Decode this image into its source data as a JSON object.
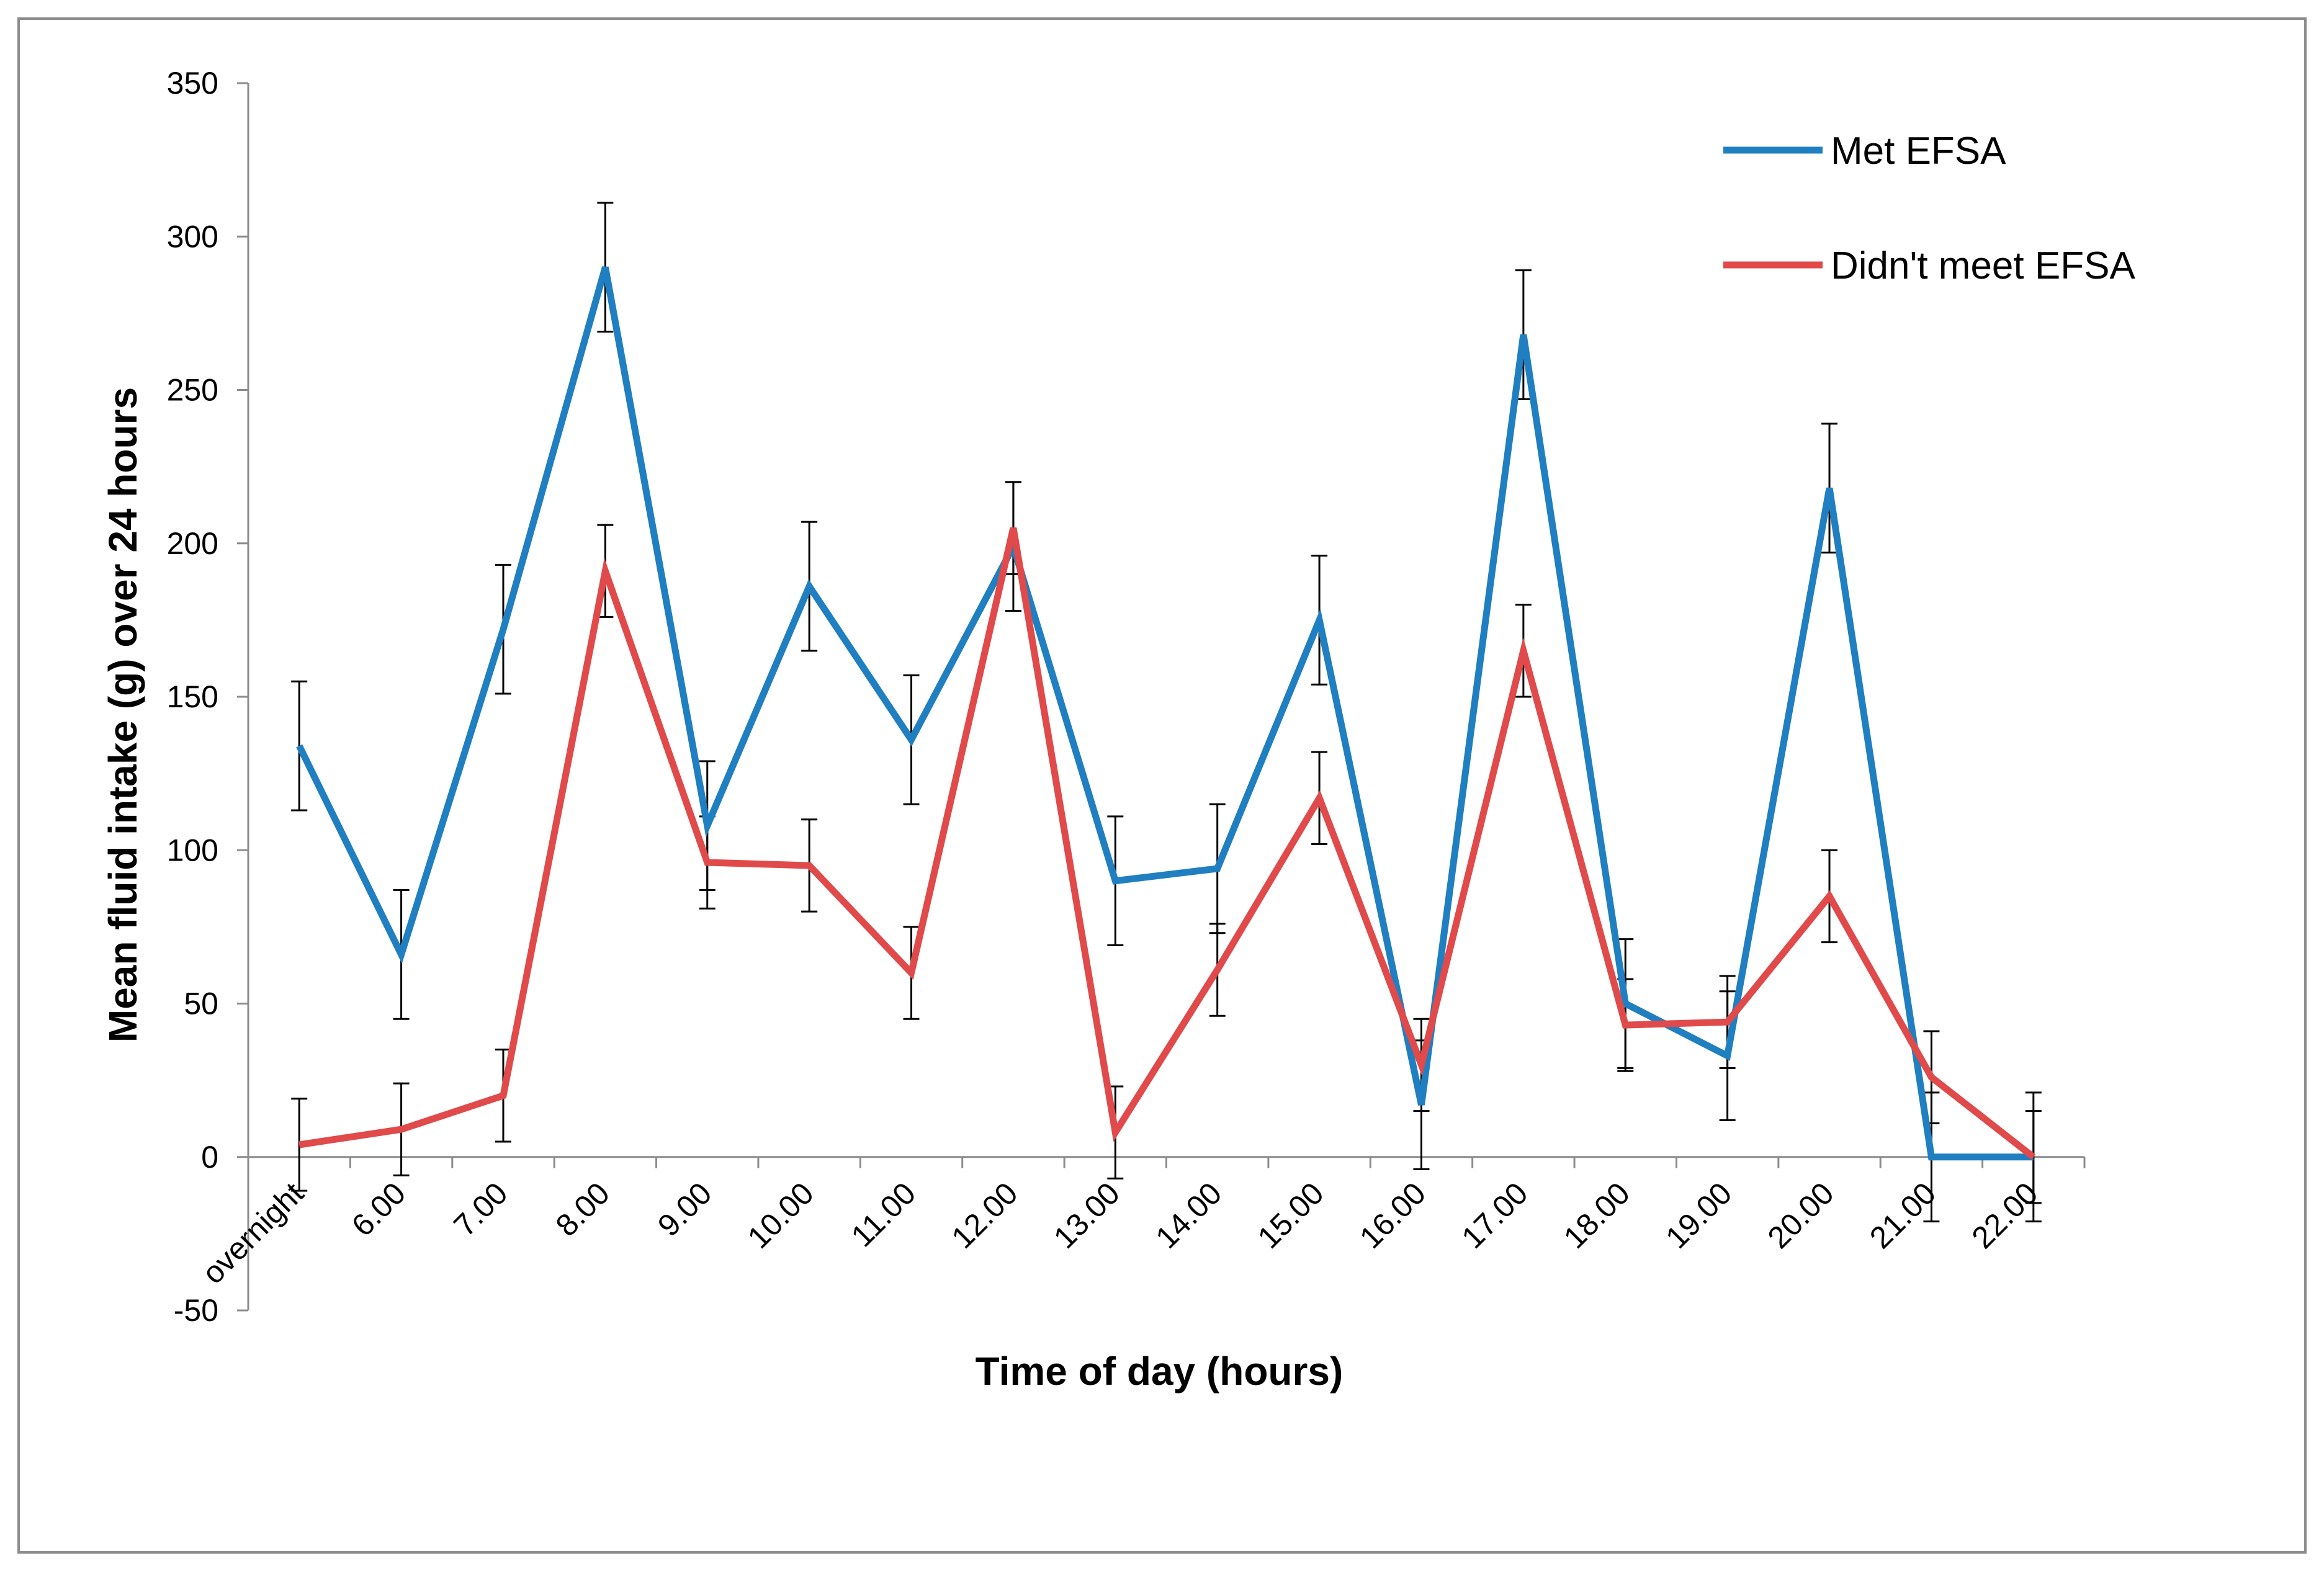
{
  "chart_data": {
    "type": "line",
    "title": "",
    "xlabel": "Time of day (hours)",
    "ylabel": "Mean fluid intake (g) over 24 hours",
    "ylim": [
      -50,
      350
    ],
    "yticks": [
      -50,
      0,
      50,
      100,
      150,
      200,
      250,
      300,
      350
    ],
    "grid": false,
    "legend_position": "top-right",
    "categories": [
      "overnight",
      "6.00",
      "7.00",
      "8.00",
      "9.00",
      "10.00",
      "11.00",
      "12.00",
      "13.00",
      "14.00",
      "15.00",
      "16.00",
      "17.00",
      "18.00",
      "19.00",
      "20.00",
      "21.00",
      "22.00"
    ],
    "series": [
      {
        "name": "Met EFSA",
        "color": "#1f7fc1",
        "values": [
          134,
          66,
          172,
          290,
          108,
          186,
          136,
          199,
          90,
          94,
          175,
          17,
          268,
          50,
          33,
          218,
          0,
          0
        ],
        "error": [
          21,
          21,
          21,
          21,
          21,
          21,
          21,
          21,
          21,
          21,
          21,
          21,
          21,
          21,
          21,
          21,
          21,
          21
        ]
      },
      {
        "name": "Didn't meet EFSA",
        "color": "#e04a4a",
        "values": [
          4,
          9,
          20,
          191,
          96,
          95,
          60,
          205,
          8,
          61,
          117,
          30,
          165,
          43,
          44,
          85,
          26,
          0
        ],
        "error": [
          15,
          15,
          15,
          15,
          15,
          15,
          15,
          15,
          15,
          15,
          15,
          15,
          15,
          15,
          15,
          15,
          15,
          15
        ]
      }
    ]
  }
}
